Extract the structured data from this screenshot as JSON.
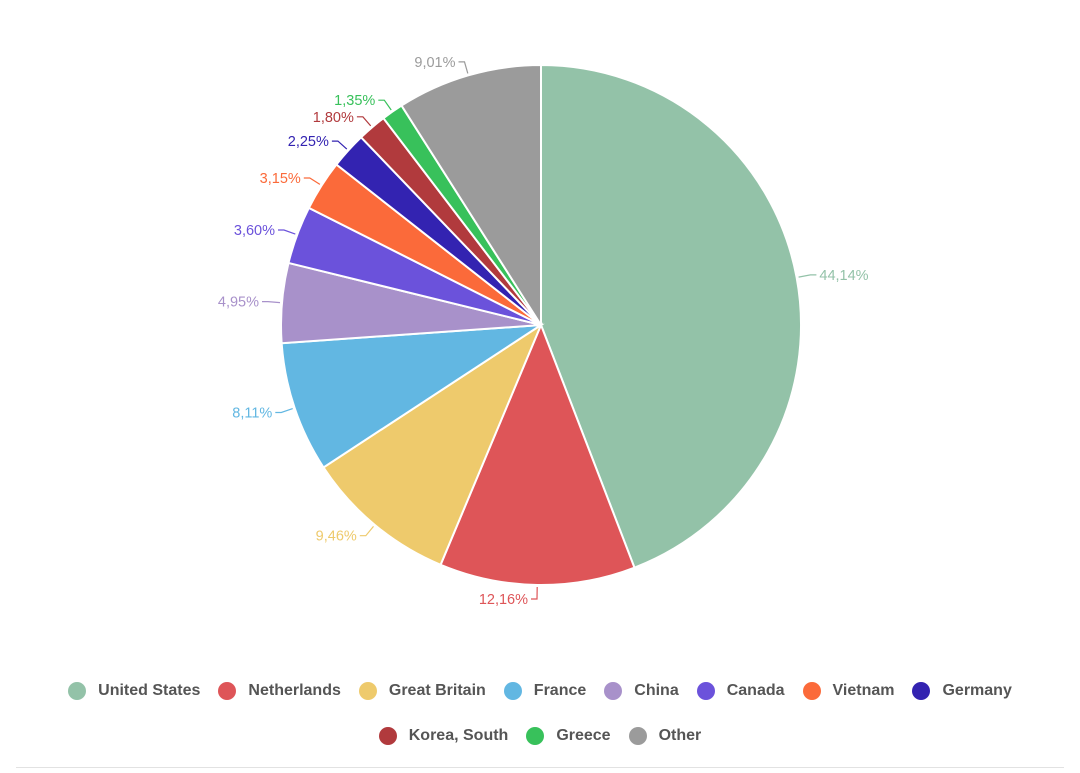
{
  "chart_data": {
    "type": "pie",
    "title": "",
    "slices": [
      {
        "name": "United States",
        "value": 44.14,
        "label": "44,14%",
        "color": "#93C2A8"
      },
      {
        "name": "Netherlands",
        "value": 12.16,
        "label": "12,16%",
        "color": "#DE5558"
      },
      {
        "name": "Great Britain",
        "value": 9.46,
        "label": "9,46%",
        "color": "#EECA6C"
      },
      {
        "name": "France",
        "value": 8.11,
        "label": "8,11%",
        "color": "#62B7E2"
      },
      {
        "name": "China",
        "value": 4.95,
        "label": "4,95%",
        "color": "#A891CA"
      },
      {
        "name": "Canada",
        "value": 3.6,
        "label": "3,60%",
        "color": "#6B52DB"
      },
      {
        "name": "Vietnam",
        "value": 3.15,
        "label": "3,15%",
        "color": "#FB6A3A"
      },
      {
        "name": "Germany",
        "value": 2.25,
        "label": "2,25%",
        "color": "#3323B1"
      },
      {
        "name": "Korea, South",
        "value": 1.8,
        "label": "1,80%",
        "color": "#B13A3D"
      },
      {
        "name": "Greece",
        "value": 1.35,
        "label": "1,35%",
        "color": "#38C15B"
      },
      {
        "name": "Other",
        "value": 9.01,
        "label": "9,01%",
        "color": "#9B9B9B"
      }
    ],
    "legend_position": "bottom",
    "start": "12 o'clock, clockwise"
  }
}
